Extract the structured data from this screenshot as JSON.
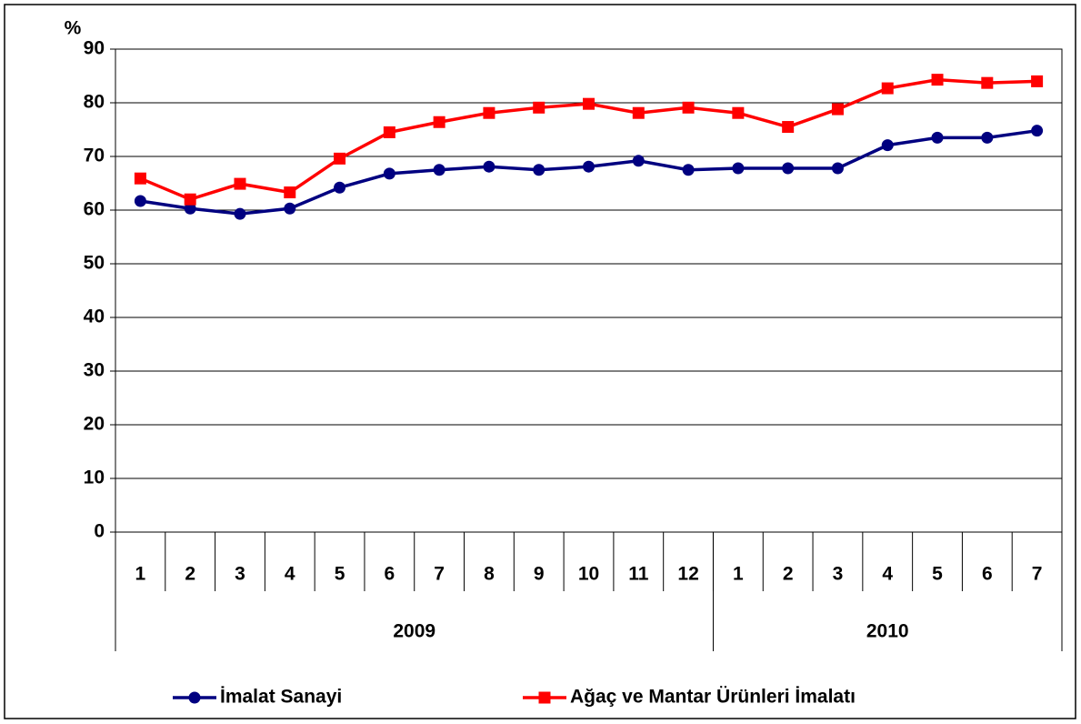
{
  "chart_data": {
    "type": "line",
    "y_axis_label": "%",
    "category_groups": [
      {
        "name": "2009",
        "categories": [
          "1",
          "2",
          "3",
          "4",
          "5",
          "6",
          "7",
          "8",
          "9",
          "10",
          "11",
          "12"
        ]
      },
      {
        "name": "2010",
        "categories": [
          "1",
          "2",
          "3",
          "4",
          "5",
          "6",
          "7"
        ]
      }
    ],
    "series": [
      {
        "name": "İmalat Sanayi",
        "color": "#000080",
        "marker": "circle",
        "values": [
          61.7,
          60.3,
          59.3,
          60.3,
          64.2,
          66.8,
          67.5,
          68.1,
          67.5,
          68.1,
          69.2,
          67.5,
          67.8,
          67.8,
          67.8,
          72.1,
          73.5,
          73.5,
          74.8
        ]
      },
      {
        "name": "Ağaç ve Mantar Ürünleri İmalatı",
        "color": "#ff0000",
        "marker": "square",
        "values": [
          65.9,
          62.0,
          64.9,
          63.3,
          69.6,
          74.5,
          76.4,
          78.1,
          79.1,
          79.8,
          78.1,
          79.1,
          78.1,
          75.5,
          78.8,
          82.7,
          84.3,
          83.7,
          84.0
        ]
      }
    ],
    "ylim": [
      0,
      90
    ],
    "yticks": [
      0,
      10,
      20,
      30,
      40,
      50,
      60,
      70,
      80,
      90
    ],
    "grid": true,
    "legend": "bottom"
  }
}
